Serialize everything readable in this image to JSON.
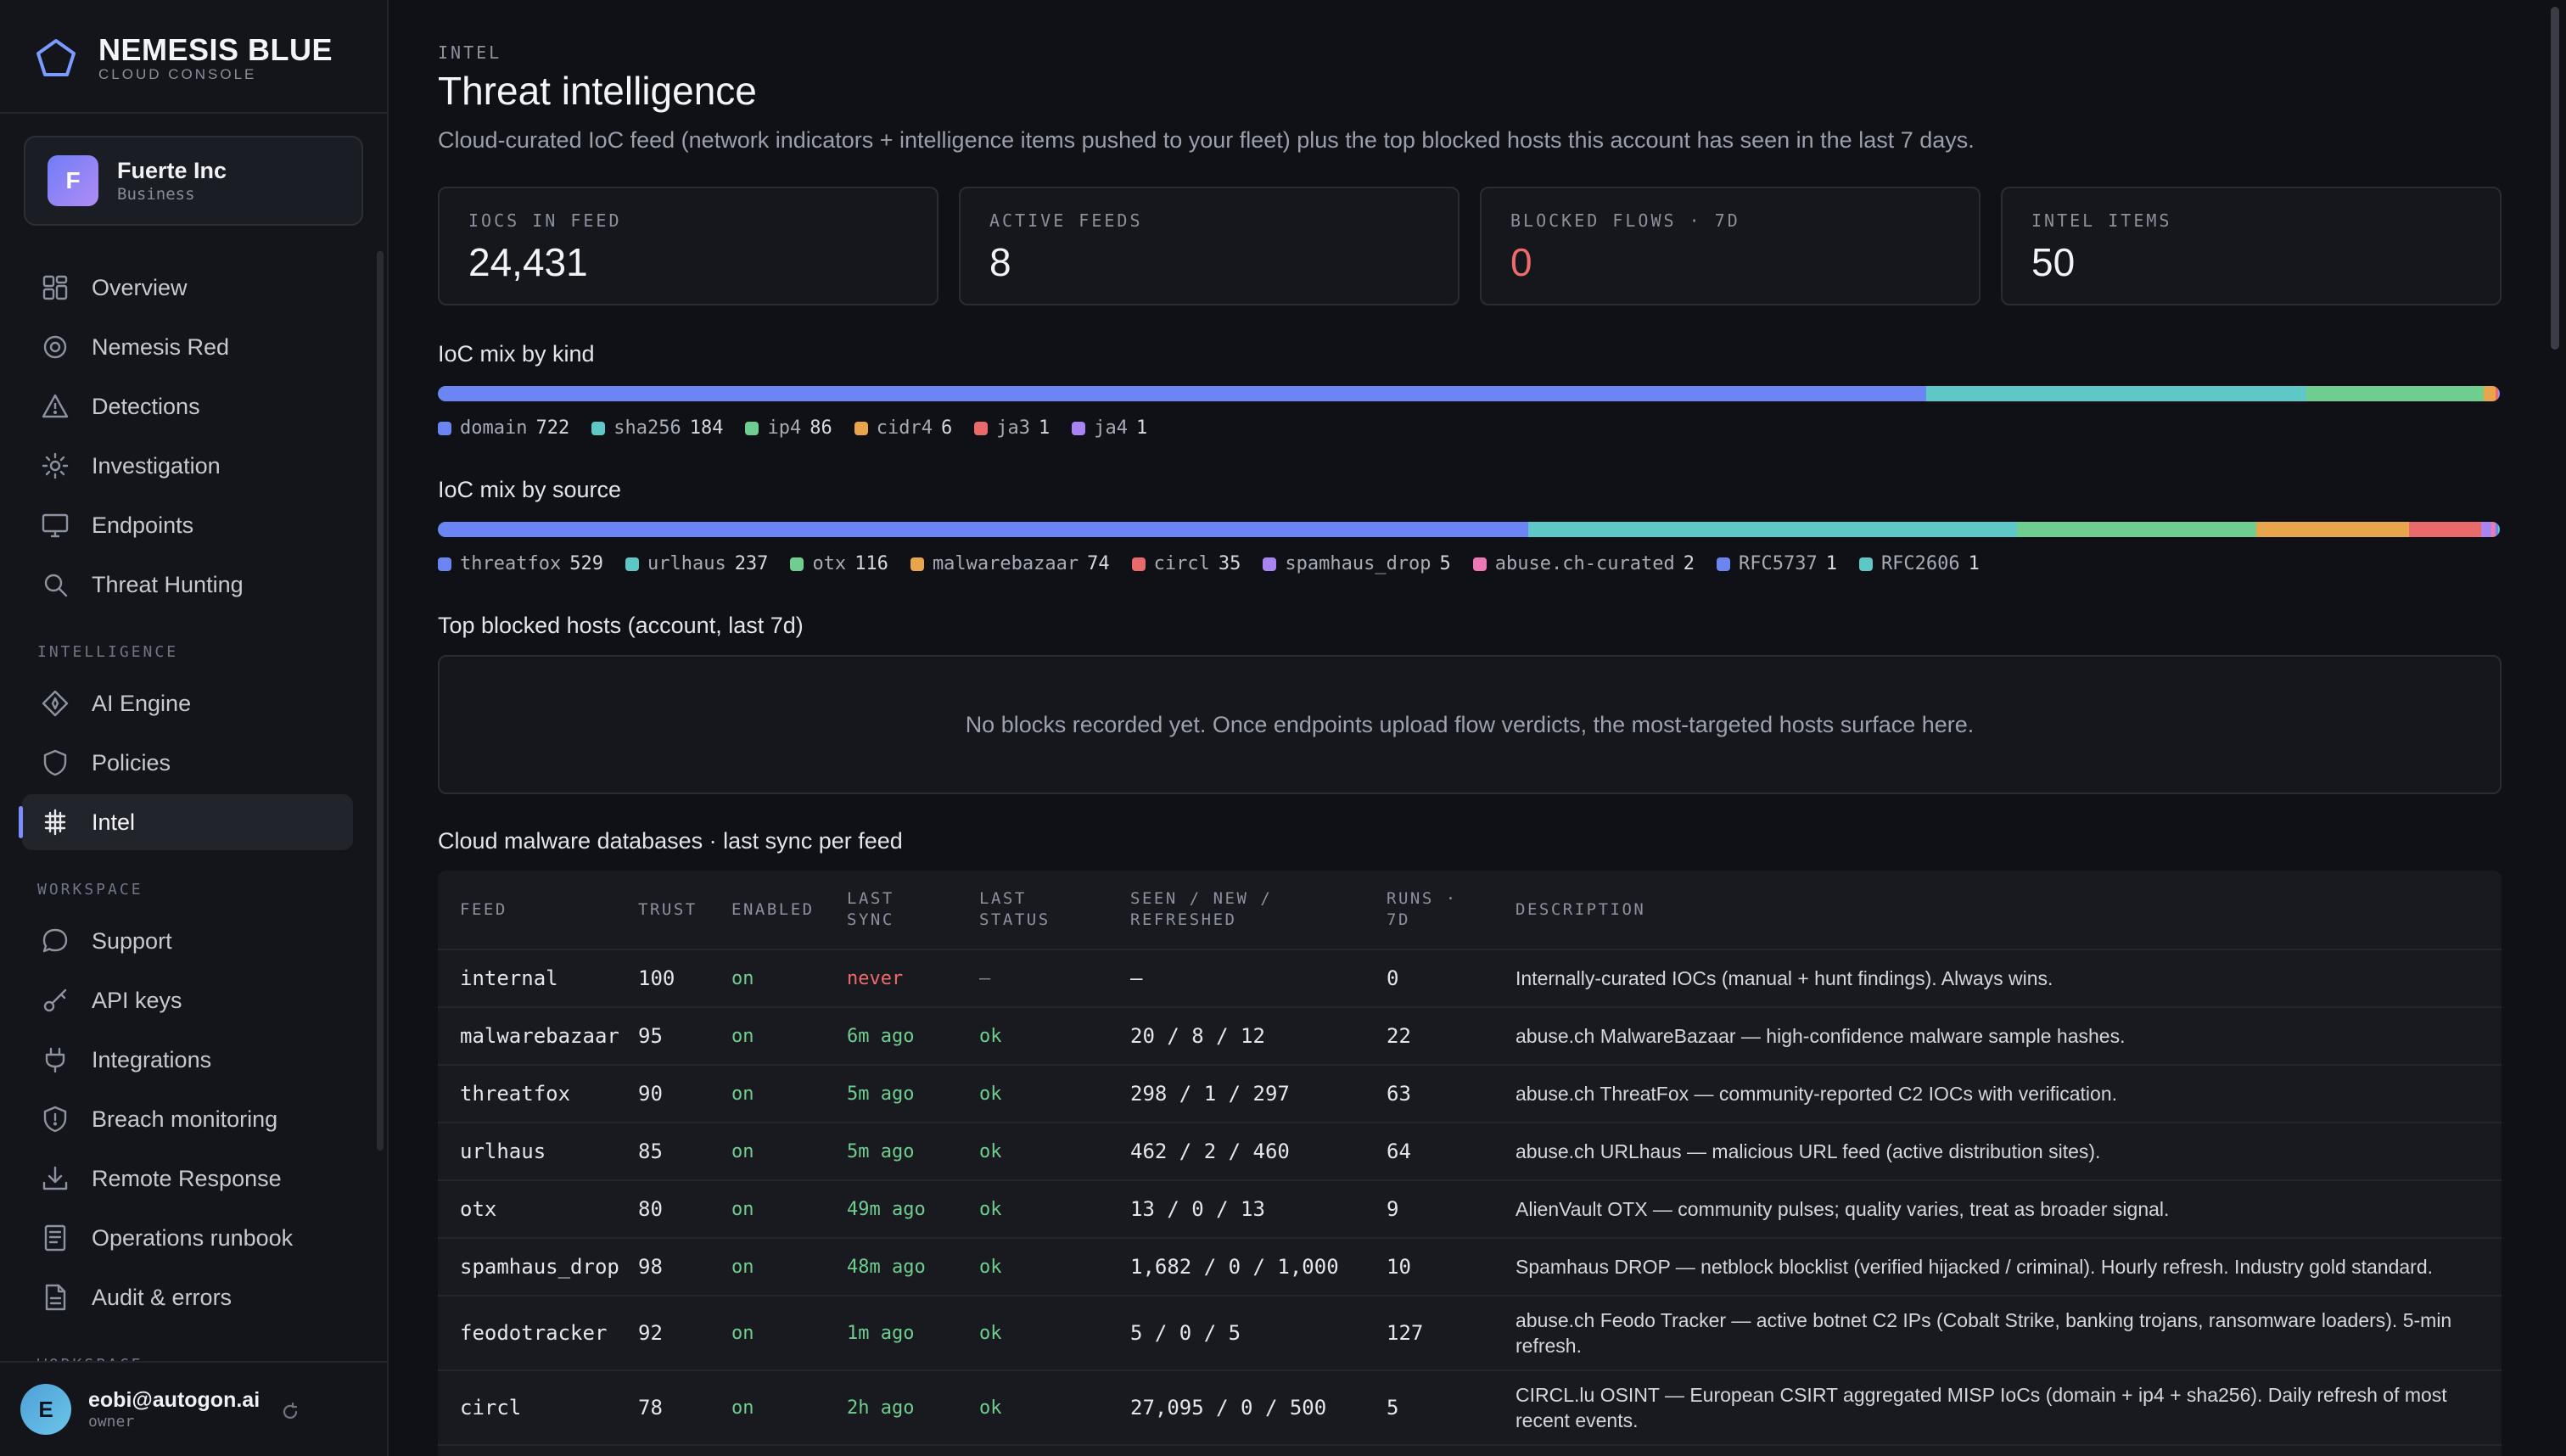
{
  "brand": {
    "name": "NEMESIS BLUE",
    "sub": "CLOUD CONSOLE"
  },
  "org": {
    "initial": "F",
    "name": "Fuerte Inc",
    "plan": "Business"
  },
  "nav": {
    "main": [
      {
        "label": "Overview",
        "icon": "grid-icon"
      },
      {
        "label": "Nemesis Red",
        "icon": "target-icon"
      },
      {
        "label": "Detections",
        "icon": "warning-icon"
      },
      {
        "label": "Investigation",
        "icon": "bug-icon"
      },
      {
        "label": "Endpoints",
        "icon": "monitor-icon"
      },
      {
        "label": "Threat Hunting",
        "icon": "search-icon"
      }
    ],
    "section_intelligence": "INTELLIGENCE",
    "intelligence": [
      {
        "label": "AI Engine",
        "icon": "sparkle-icon"
      },
      {
        "label": "Policies",
        "icon": "shield-icon"
      },
      {
        "label": "Intel",
        "icon": "chip-icon",
        "active": true
      }
    ],
    "section_workspace": "WORKSPACE",
    "workspace": [
      {
        "label": "Support",
        "icon": "chat-icon"
      },
      {
        "label": "API keys",
        "icon": "key-icon"
      },
      {
        "label": "Integrations",
        "icon": "plug-icon"
      },
      {
        "label": "Breach monitoring",
        "icon": "shield-alert-icon"
      },
      {
        "label": "Remote Response",
        "icon": "download-icon"
      },
      {
        "label": "Operations runbook",
        "icon": "book-icon"
      },
      {
        "label": "Audit & errors",
        "icon": "document-icon"
      }
    ],
    "section_workspace_2": "WORKSPACE"
  },
  "user": {
    "initial": "E",
    "email": "eobi@autogon.ai",
    "role": "owner"
  },
  "page": {
    "eyebrow": "INTEL",
    "title": "Threat intelligence",
    "subtitle": "Cloud-curated IoC feed (network indicators + intelligence items pushed to your fleet) plus the top blocked hosts this account has seen in the last 7 days."
  },
  "stats": [
    {
      "label": "IOCS IN FEED",
      "value": "24,431"
    },
    {
      "label": "ACTIVE FEEDS",
      "value": "8"
    },
    {
      "label": "BLOCKED FLOWS · 7D",
      "value": "0",
      "alert": true
    },
    {
      "label": "INTEL ITEMS",
      "value": "50"
    }
  ],
  "mix_kind": {
    "title": "IoC mix by kind",
    "items": [
      {
        "label": "domain",
        "count": 722,
        "color": "#6b86f2"
      },
      {
        "label": "sha256",
        "count": 184,
        "color": "#5ec7c8"
      },
      {
        "label": "ip4",
        "count": 86,
        "color": "#6fce8f"
      },
      {
        "label": "cidr4",
        "count": 6,
        "color": "#e8a54b"
      },
      {
        "label": "ja3",
        "count": 1,
        "color": "#e86a6a"
      },
      {
        "label": "ja4",
        "count": 1,
        "color": "#a784f2"
      }
    ]
  },
  "mix_source": {
    "title": "IoC mix by source",
    "items": [
      {
        "label": "threatfox",
        "count": 529,
        "color": "#6b86f2"
      },
      {
        "label": "urlhaus",
        "count": 237,
        "color": "#5ec7c8"
      },
      {
        "label": "otx",
        "count": 116,
        "color": "#6fce8f"
      },
      {
        "label": "malwarebazaar",
        "count": 74,
        "color": "#e8a54b"
      },
      {
        "label": "circl",
        "count": 35,
        "color": "#e86a6a"
      },
      {
        "label": "spamhaus_drop",
        "count": 5,
        "color": "#a784f2"
      },
      {
        "label": "abuse.ch-curated",
        "count": 2,
        "color": "#ec79b6"
      },
      {
        "label": "RFC5737",
        "count": 1,
        "color": "#6b86f2"
      },
      {
        "label": "RFC2606",
        "count": 1,
        "color": "#5ec7c8"
      }
    ]
  },
  "blocked": {
    "title": "Top blocked hosts (account, last 7d)",
    "empty": "No blocks recorded yet. Once endpoints upload flow verdicts, the most-targeted hosts surface here."
  },
  "feeds": {
    "title": "Cloud malware databases · last sync per feed",
    "headers": {
      "feed": "FEED",
      "trust": "TRUST",
      "enabled": "ENABLED",
      "last_sync": "LAST SYNC",
      "last_status": "LAST STATUS",
      "seen": "SEEN / NEW / REFRESHED",
      "runs": "RUNS · 7D",
      "description": "DESCRIPTION"
    },
    "rows": [
      {
        "feed": "internal",
        "trust": "100",
        "enabled": "on",
        "last_sync": "never",
        "last_status": "—",
        "seen": "—",
        "runs": "0",
        "description": "Internally-curated IOCs (manual + hunt findings). Always wins."
      },
      {
        "feed": "malwarebazaar",
        "trust": "95",
        "enabled": "on",
        "last_sync": "6m ago",
        "last_status": "ok",
        "seen": "20 / 8 / 12",
        "runs": "22",
        "description": "abuse.ch MalwareBazaar — high-confidence malware sample hashes."
      },
      {
        "feed": "threatfox",
        "trust": "90",
        "enabled": "on",
        "last_sync": "5m ago",
        "last_status": "ok",
        "seen": "298 / 1 / 297",
        "runs": "63",
        "description": "abuse.ch ThreatFox — community-reported C2 IOCs with verification."
      },
      {
        "feed": "urlhaus",
        "trust": "85",
        "enabled": "on",
        "last_sync": "5m ago",
        "last_status": "ok",
        "seen": "462 / 2 / 460",
        "runs": "64",
        "description": "abuse.ch URLhaus — malicious URL feed (active distribution sites)."
      },
      {
        "feed": "otx",
        "trust": "80",
        "enabled": "on",
        "last_sync": "49m ago",
        "last_status": "ok",
        "seen": "13 / 0 / 13",
        "runs": "9",
        "description": "AlienVault OTX — community pulses; quality varies, treat as broader signal."
      },
      {
        "feed": "spamhaus_drop",
        "trust": "98",
        "enabled": "on",
        "last_sync": "48m ago",
        "last_status": "ok",
        "seen": "1,682 / 0 / 1,000",
        "runs": "10",
        "description": "Spamhaus DROP — netblock blocklist (verified hijacked / criminal). Hourly refresh. Industry gold standard."
      },
      {
        "feed": "feodotracker",
        "trust": "92",
        "enabled": "on",
        "last_sync": "1m ago",
        "last_status": "ok",
        "seen": "5 / 0 / 5",
        "runs": "127",
        "description": "abuse.ch Feodo Tracker — active botnet C2 IPs (Cobalt Strike, banking trojans, ransomware loaders). 5-min refresh."
      },
      {
        "feed": "circl",
        "trust": "78",
        "enabled": "on",
        "last_sync": "2h ago",
        "last_status": "ok",
        "seen": "27,095 / 0 / 500",
        "runs": "5",
        "description": "CIRCL.lu OSINT — European CSIRT aggregated MISP IoCs (domain + ip4 + sha256). Daily refresh of most recent events."
      }
    ]
  }
}
